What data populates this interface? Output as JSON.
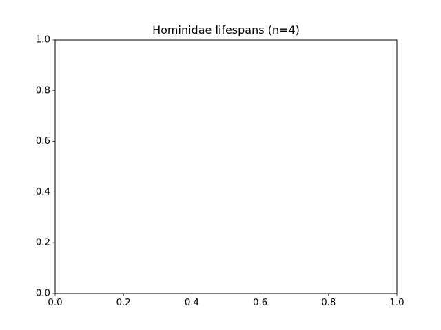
{
  "chart_data": {
    "type": "scatter",
    "title": "Hominidae lifespans (n=4)",
    "xlabel": "",
    "ylabel": "",
    "xlim": [
      0.0,
      1.0
    ],
    "ylim": [
      0.0,
      1.0
    ],
    "xticks": [
      "0.0",
      "0.2",
      "0.4",
      "0.6",
      "0.8",
      "1.0"
    ],
    "yticks": [
      "0.0",
      "0.2",
      "0.4",
      "0.6",
      "0.8",
      "1.0"
    ],
    "grid": false,
    "legend": "none",
    "series": [],
    "colors": {
      "axes": "#000000",
      "background": "#ffffff",
      "text": "#000000"
    }
  }
}
